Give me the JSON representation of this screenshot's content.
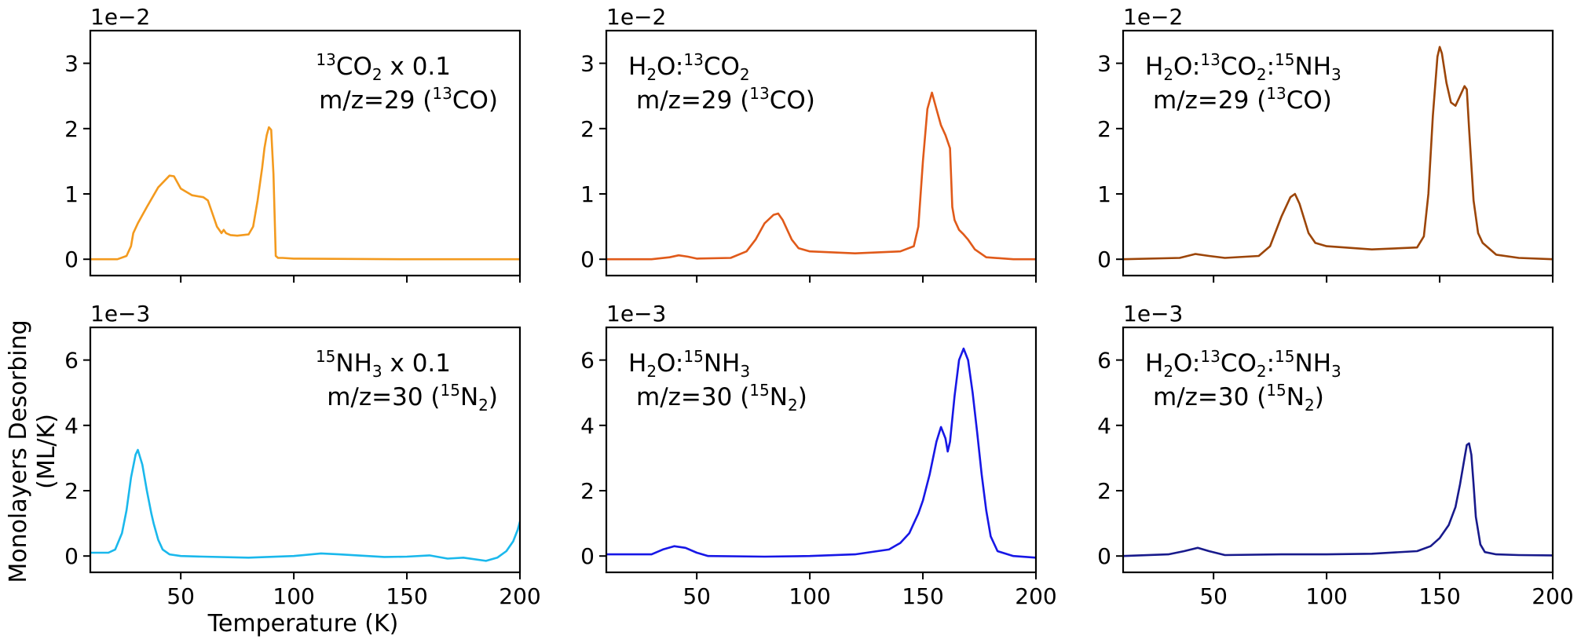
{
  "figure": {
    "ylabel_line1": "Monolayers Desorbing",
    "ylabel_line2": "(ML/K)",
    "xlabel": "Temperature (K)"
  },
  "chart_data": [
    {
      "type": "line",
      "id": "p1",
      "row": 0,
      "col": 0,
      "color": "#f39a1e",
      "scale_label": "1e−2",
      "label_line1": [
        {
          "t": "13",
          "s": "sup"
        },
        {
          "t": "CO"
        },
        {
          "t": "2",
          "s": "sub"
        },
        {
          "t": " x 0.1"
        }
      ],
      "label_line2": [
        {
          "t": "m/z=29 ("
        },
        {
          "t": "13",
          "s": "sup"
        },
        {
          "t": "CO)"
        }
      ],
      "label_align": "right",
      "xlim": [
        10,
        200
      ],
      "ylim": [
        -0.25,
        3.5
      ],
      "xticks": [
        50,
        100,
        150,
        200
      ],
      "xticklabels": [],
      "yticks": [
        0,
        1,
        2,
        3
      ],
      "yticklabels": [
        "0",
        "1",
        "2",
        "3"
      ],
      "x": [
        10,
        22,
        26,
        28,
        29,
        31,
        35,
        40,
        45,
        47,
        50,
        55,
        60,
        62,
        64,
        66,
        68,
        69,
        70,
        72,
        75,
        80,
        82,
        84,
        86,
        87,
        88,
        89,
        90,
        91,
        92,
        93,
        95,
        100,
        150,
        200
      ],
      "y": [
        0,
        0,
        0.05,
        0.2,
        0.4,
        0.55,
        0.8,
        1.1,
        1.28,
        1.27,
        1.08,
        0.98,
        0.95,
        0.9,
        0.7,
        0.5,
        0.4,
        0.45,
        0.4,
        0.37,
        0.36,
        0.38,
        0.5,
        0.9,
        1.4,
        1.7,
        1.9,
        2.02,
        1.98,
        1.3,
        0.05,
        0.02,
        0.02,
        0.01,
        0,
        0
      ]
    },
    {
      "type": "line",
      "id": "p2",
      "row": 0,
      "col": 1,
      "color": "#e05a1a",
      "scale_label": "1e−2",
      "label_line1": [
        {
          "t": "H"
        },
        {
          "t": "2",
          "s": "sub"
        },
        {
          "t": "O:"
        },
        {
          "t": "13",
          "s": "sup"
        },
        {
          "t": "CO"
        },
        {
          "t": "2",
          "s": "sub"
        }
      ],
      "label_line2": [
        {
          "t": "m/z=29 ("
        },
        {
          "t": "13",
          "s": "sup"
        },
        {
          "t": "CO)"
        }
      ],
      "label_align": "left",
      "xlim": [
        10,
        200
      ],
      "ylim": [
        -0.25,
        3.5
      ],
      "xticks": [
        50,
        100,
        150,
        200
      ],
      "xticklabels": [],
      "yticks": [
        0,
        1,
        2,
        3
      ],
      "yticklabels": [
        "0",
        "1",
        "2",
        "3"
      ],
      "x": [
        10,
        30,
        38,
        42,
        46,
        50,
        65,
        72,
        76,
        80,
        84,
        86,
        88,
        92,
        95,
        100,
        120,
        140,
        146,
        148,
        150,
        152,
        154,
        156,
        158,
        160,
        162,
        163,
        164,
        166,
        168,
        170,
        173,
        178,
        190,
        200
      ],
      "y": [
        0,
        0,
        0.03,
        0.06,
        0.04,
        0.01,
        0.02,
        0.12,
        0.3,
        0.55,
        0.68,
        0.7,
        0.6,
        0.3,
        0.17,
        0.12,
        0.09,
        0.12,
        0.2,
        0.5,
        1.5,
        2.3,
        2.55,
        2.3,
        2.05,
        1.9,
        1.7,
        0.8,
        0.6,
        0.45,
        0.38,
        0.3,
        0.15,
        0.03,
        0,
        0
      ]
    },
    {
      "type": "line",
      "id": "p3",
      "row": 0,
      "col": 2,
      "color": "#9c4508",
      "scale_label": "1e−2",
      "label_line1": [
        {
          "t": "H"
        },
        {
          "t": "2",
          "s": "sub"
        },
        {
          "t": "O:"
        },
        {
          "t": "13",
          "s": "sup"
        },
        {
          "t": "CO"
        },
        {
          "t": "2",
          "s": "sub"
        },
        {
          "t": ":"
        },
        {
          "t": "15",
          "s": "sup"
        },
        {
          "t": "NH"
        },
        {
          "t": "3",
          "s": "sub"
        }
      ],
      "label_line2": [
        {
          "t": "m/z=29 ("
        },
        {
          "t": "13",
          "s": "sup"
        },
        {
          "t": "CO)"
        }
      ],
      "label_align": "left",
      "xlim": [
        10,
        200
      ],
      "ylim": [
        -0.25,
        3.5
      ],
      "xticks": [
        50,
        100,
        150,
        200
      ],
      "xticklabels": [],
      "yticks": [
        0,
        1,
        2,
        3
      ],
      "yticklabels": [
        "0",
        "1",
        "2",
        "3"
      ],
      "x": [
        10,
        35,
        42,
        48,
        55,
        70,
        75,
        80,
        84,
        86,
        88,
        92,
        95,
        100,
        120,
        140,
        143,
        145,
        147,
        149,
        150,
        151,
        153,
        155,
        157,
        159,
        161,
        162,
        163,
        165,
        167,
        169,
        175,
        185,
        200
      ],
      "y": [
        0,
        0.02,
        0.08,
        0.05,
        0.02,
        0.05,
        0.2,
        0.65,
        0.95,
        1.0,
        0.85,
        0.4,
        0.25,
        0.2,
        0.15,
        0.18,
        0.35,
        1.0,
        2.2,
        3.1,
        3.25,
        3.15,
        2.7,
        2.4,
        2.35,
        2.5,
        2.65,
        2.6,
        2.0,
        0.9,
        0.4,
        0.25,
        0.07,
        0.02,
        0
      ]
    },
    {
      "type": "line",
      "id": "p4",
      "row": 1,
      "col": 0,
      "color": "#1ab8ec",
      "scale_label": "1e−3",
      "label_line1": [
        {
          "t": "15",
          "s": "sup"
        },
        {
          "t": "NH"
        },
        {
          "t": "3",
          "s": "sub"
        },
        {
          "t": " x 0.1"
        }
      ],
      "label_line2": [
        {
          "t": "m/z=30 ("
        },
        {
          "t": "15",
          "s": "sup"
        },
        {
          "t": "N"
        },
        {
          "t": "2",
          "s": "sub"
        },
        {
          "t": ")"
        }
      ],
      "label_align": "right",
      "xlim": [
        10,
        200
      ],
      "ylim": [
        -0.5,
        7.0
      ],
      "xticks": [
        50,
        100,
        150,
        200
      ],
      "xticklabels": [
        "50",
        "100",
        "150",
        "200"
      ],
      "yticks": [
        0,
        2,
        4,
        6
      ],
      "yticklabels": [
        "0",
        "2",
        "4",
        "6"
      ],
      "x": [
        10,
        18,
        21,
        24,
        26,
        28,
        30,
        31,
        33,
        35,
        37,
        38,
        40,
        42,
        45,
        50,
        60,
        80,
        100,
        112,
        120,
        140,
        150,
        160,
        168,
        175,
        185,
        190,
        194,
        197,
        199,
        200
      ],
      "y": [
        0.1,
        0.1,
        0.2,
        0.7,
        1.4,
        2.4,
        3.1,
        3.25,
        2.8,
        2.0,
        1.3,
        1.0,
        0.5,
        0.2,
        0.05,
        0.0,
        -0.02,
        -0.05,
        0.0,
        0.08,
        0.05,
        -0.03,
        -0.02,
        0.02,
        -0.08,
        -0.05,
        -0.15,
        -0.05,
        0.15,
        0.45,
        0.8,
        1.05
      ]
    },
    {
      "type": "line",
      "id": "p5",
      "row": 1,
      "col": 1,
      "color": "#1717e6",
      "scale_label": "1e−3",
      "label_line1": [
        {
          "t": "H"
        },
        {
          "t": "2",
          "s": "sub"
        },
        {
          "t": "O:"
        },
        {
          "t": "15",
          "s": "sup"
        },
        {
          "t": "NH"
        },
        {
          "t": "3",
          "s": "sub"
        }
      ],
      "label_line2": [
        {
          "t": "m/z=30 ("
        },
        {
          "t": "15",
          "s": "sup"
        },
        {
          "t": "N"
        },
        {
          "t": "2",
          "s": "sub"
        },
        {
          "t": ")"
        }
      ],
      "label_align": "left",
      "xlim": [
        10,
        200
      ],
      "ylim": [
        -0.5,
        7.0
      ],
      "xticks": [
        50,
        100,
        150,
        200
      ],
      "xticklabels": [
        "50",
        "100",
        "150",
        "200"
      ],
      "yticks": [
        0,
        2,
        4,
        6
      ],
      "yticklabels": [
        "0",
        "2",
        "4",
        "6"
      ],
      "x": [
        10,
        30,
        35,
        40,
        45,
        50,
        55,
        80,
        100,
        120,
        135,
        140,
        144,
        146,
        148,
        150,
        153,
        156,
        158,
        160,
        161,
        162,
        164,
        166,
        168,
        170,
        172,
        174,
        176,
        178,
        180,
        183,
        190,
        200
      ],
      "y": [
        0.05,
        0.05,
        0.2,
        0.3,
        0.25,
        0.1,
        0.0,
        -0.02,
        0.0,
        0.05,
        0.2,
        0.4,
        0.7,
        1.0,
        1.3,
        1.7,
        2.5,
        3.5,
        3.95,
        3.6,
        3.2,
        3.5,
        4.9,
        6.0,
        6.35,
        6.0,
        5.0,
        3.8,
        2.5,
        1.4,
        0.6,
        0.15,
        0.0,
        -0.05
      ]
    },
    {
      "type": "line",
      "id": "p6",
      "row": 1,
      "col": 2,
      "color": "#181a8c",
      "scale_label": "1e−3",
      "label_line1": [
        {
          "t": "H"
        },
        {
          "t": "2",
          "s": "sub"
        },
        {
          "t": "O:"
        },
        {
          "t": "13",
          "s": "sup"
        },
        {
          "t": "CO"
        },
        {
          "t": "2",
          "s": "sub"
        },
        {
          "t": ":"
        },
        {
          "t": "15",
          "s": "sup"
        },
        {
          "t": "NH"
        },
        {
          "t": "3",
          "s": "sub"
        }
      ],
      "label_line2": [
        {
          "t": "m/z=30 ("
        },
        {
          "t": "15",
          "s": "sup"
        },
        {
          "t": "N"
        },
        {
          "t": "2",
          "s": "sub"
        },
        {
          "t": ")"
        }
      ],
      "label_align": "left",
      "xlim": [
        10,
        200
      ],
      "ylim": [
        -0.5,
        7.0
      ],
      "xticks": [
        50,
        100,
        150,
        200
      ],
      "xticklabels": [
        "50",
        "100",
        "150",
        "200"
      ],
      "yticks": [
        0,
        2,
        4,
        6
      ],
      "yticklabels": [
        "0",
        "2",
        "4",
        "6"
      ],
      "x": [
        10,
        30,
        37,
        43,
        48,
        55,
        80,
        100,
        120,
        140,
        146,
        150,
        154,
        157,
        159,
        161,
        162,
        163,
        164,
        165,
        166,
        168,
        170,
        175,
        185,
        200
      ],
      "y": [
        0.0,
        0.05,
        0.15,
        0.25,
        0.15,
        0.03,
        0.05,
        0.05,
        0.07,
        0.15,
        0.3,
        0.55,
        0.95,
        1.5,
        2.2,
        3.0,
        3.4,
        3.45,
        3.1,
        2.2,
        1.2,
        0.35,
        0.12,
        0.05,
        0.03,
        0.02
      ]
    }
  ]
}
